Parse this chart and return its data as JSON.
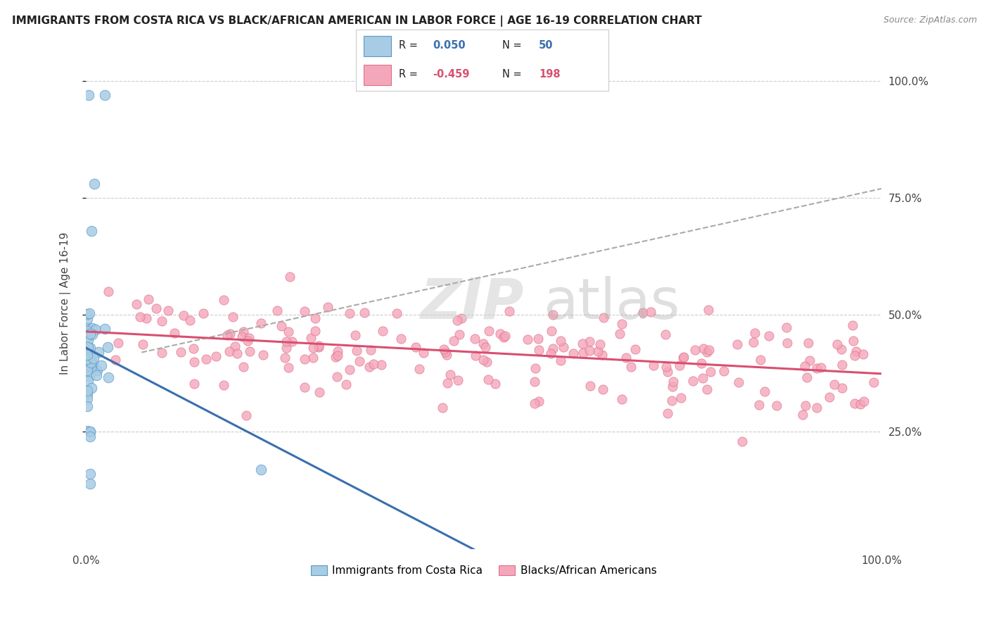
{
  "title": "IMMIGRANTS FROM COSTA RICA VS BLACK/AFRICAN AMERICAN IN LABOR FORCE | AGE 16-19 CORRELATION CHART",
  "source": "Source: ZipAtlas.com",
  "ylabel": "In Labor Force | Age 16-19",
  "ytick_labels": [
    "25.0%",
    "50.0%",
    "75.0%",
    "100.0%"
  ],
  "ytick_values": [
    0.25,
    0.5,
    0.75,
    1.0
  ],
  "xlim": [
    0.0,
    1.0
  ],
  "ylim": [
    0.0,
    1.05
  ],
  "legend_r_blue": "0.050",
  "legend_n_blue": "50",
  "legend_r_pink": "-0.459",
  "legend_n_pink": "198",
  "blue_color": "#a8cce4",
  "pink_color": "#f4a7b9",
  "blue_edge_color": "#5a9ac5",
  "pink_edge_color": "#e07090",
  "blue_line_color": "#3a6fad",
  "pink_line_color": "#d94f70",
  "dash_line_color": "#aaaaaa",
  "legend_labels": [
    "Immigrants from Costa Rica",
    "Blacks/African Americans"
  ],
  "background_color": "#ffffff",
  "grid_color": "#cccccc",
  "legend_r_blue_color": "#3a6fad",
  "legend_r_pink_color": "#d94f70",
  "title_color": "#222222",
  "source_color": "#888888",
  "ylabel_color": "#444444"
}
